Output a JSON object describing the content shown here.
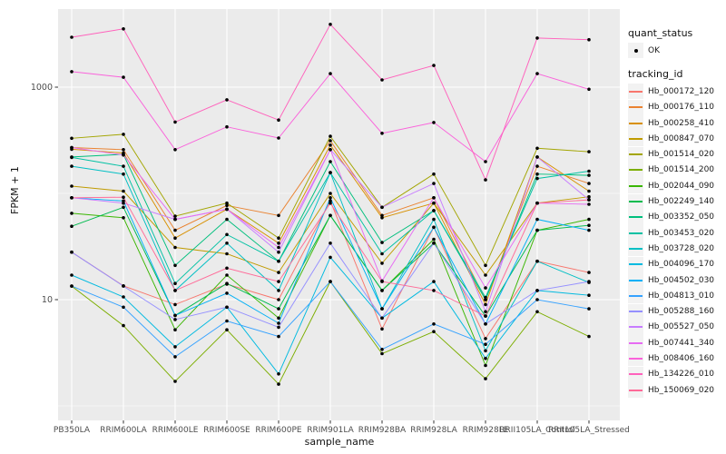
{
  "chart_data": {
    "type": "line",
    "xlabel": "sample_name",
    "ylabel": "FPKM + 1",
    "y_scale": "log10",
    "y_tick_labels": [
      "1000",
      "10"
    ],
    "y_tick_values": [
      1000,
      10
    ],
    "y_minor_grid_values": [
      100,
      1
    ],
    "panel_bg": "#EBEBEB",
    "grid_color": "#FFFFFF",
    "point_color": "#000000",
    "legend_key_bg": "#F2F2F2",
    "categories": [
      "PB350LA",
      "RRIM600LA",
      "RRIM600LE",
      "RRIM600SE",
      "RRIM600PE",
      "RRIM901LA",
      "RRIM928BA",
      "RRIM928LA",
      "RRIM928LE",
      "RRII105LA_Control",
      "RRII105LA_Stressed"
    ],
    "legend": {
      "quant_status_title": "quant_status",
      "quant_status_items": [
        {
          "label": "OK",
          "symbol": "point",
          "color": "#000000"
        }
      ],
      "tracking_title": "tracking_id"
    },
    "series": [
      {
        "name": "Hb_000172_120",
        "color": "#F8766D",
        "values": [
          28,
          13.5,
          9,
          14,
          10,
          85,
          5.3,
          48,
          4.3,
          23,
          18
        ]
      },
      {
        "name": "Hb_000176_110",
        "color": "#EA8331",
        "values": [
          270,
          258,
          45,
          77,
          62,
          313,
          62,
          91,
          10,
          180,
          124
        ]
      },
      {
        "name": "Hb_000258_410",
        "color": "#D89000",
        "values": [
          260,
          240,
          38,
          71,
          34,
          285,
          59,
          81,
          9,
          220,
          105
        ]
      },
      {
        "name": "Hb_000847_070",
        "color": "#C09B00",
        "values": [
          117,
          105,
          31,
          27,
          18,
          100,
          22,
          81,
          17,
          81,
          93
        ]
      },
      {
        "name": "Hb_001514_020",
        "color": "#A3A500",
        "values": [
          330,
          360,
          61,
          81,
          38,
          345,
          74,
          152,
          21,
          266,
          247
        ]
      },
      {
        "name": "Hb_001514_200",
        "color": "#7CAE00",
        "values": [
          13.4,
          5.7,
          1.7,
          5.2,
          1.6,
          14.8,
          3.1,
          5,
          1.8,
          7.7,
          4.5
        ]
      },
      {
        "name": "Hb_002044_090",
        "color": "#39B600",
        "values": [
          65,
          59,
          5.2,
          17,
          6.7,
          62,
          12.2,
          37,
          2.4,
          45,
          57
        ]
      },
      {
        "name": "Hb_002249_140",
        "color": "#00BB4E",
        "values": [
          49,
          74,
          7.1,
          14.2,
          8.2,
          62,
          12.2,
          34,
          7,
          45,
          50
        ]
      },
      {
        "name": "Hb_003352_050",
        "color": "#00BF7D",
        "values": [
          220,
          233,
          21,
          57,
          23,
          199,
          34.5,
          69,
          10,
          152,
          148
        ]
      },
      {
        "name": "Hb_003453_020",
        "color": "#00C1A3",
        "values": [
          218,
          180,
          14.2,
          41,
          23,
          157,
          27,
          69,
          10.5,
          138,
          162
        ]
      },
      {
        "name": "Hb_003728_020",
        "color": "#00BFC4",
        "values": [
          180,
          152,
          12.2,
          34,
          12.2,
          157,
          8.2,
          57,
          3.3,
          23,
          14.5
        ]
      },
      {
        "name": "Hb_004096_170",
        "color": "#00BAE0",
        "values": [
          17,
          10.6,
          3.6,
          8.5,
          2,
          25,
          6.7,
          14.8,
          2.8,
          12.2,
          11
        ]
      },
      {
        "name": "Hb_004502_030",
        "color": "#00B0F6",
        "values": [
          91,
          85,
          7.1,
          11.5,
          6,
          91,
          8.2,
          48,
          5.9,
          57,
          45
        ]
      },
      {
        "name": "Hb_004813_010",
        "color": "#35A2FF",
        "values": [
          13.4,
          8.5,
          2.9,
          6.3,
          4.5,
          14.8,
          3.4,
          5.9,
          3.8,
          10,
          8.2
        ]
      },
      {
        "name": "Hb_005288_160",
        "color": "#9590FF",
        "values": [
          28,
          13.4,
          6.5,
          8.5,
          5.5,
          34,
          6.7,
          34,
          5.9,
          12.2,
          14.8
        ]
      },
      {
        "name": "Hb_005527_050",
        "color": "#C77CFF",
        "values": [
          91,
          81,
          57,
          71,
          28,
          258,
          74,
          124,
          7.7,
          220,
          87
        ]
      },
      {
        "name": "Hb_007441_340",
        "color": "#E76BF3",
        "values": [
          270,
          230,
          57,
          71,
          31,
          258,
          15,
          91,
          12.9,
          81,
          79
        ]
      },
      {
        "name": "Hb_008406_160",
        "color": "#FA62DB",
        "values": [
          1400,
          1240,
          258,
          423,
          332,
          1340,
          368,
          465,
          199,
          1340,
          955
        ]
      },
      {
        "name": "Hb_134226_010",
        "color": "#FF62BC",
        "values": [
          2950,
          3540,
          470,
          760,
          490,
          3900,
          1170,
          1600,
          134,
          2900,
          2800
        ]
      },
      {
        "name": "Hb_150069_020",
        "color": "#FF6A98",
        "values": [
          91,
          92,
          12.2,
          19.8,
          14.8,
          81,
          14.8,
          12.2,
          7,
          81,
          87
        ]
      }
    ]
  }
}
